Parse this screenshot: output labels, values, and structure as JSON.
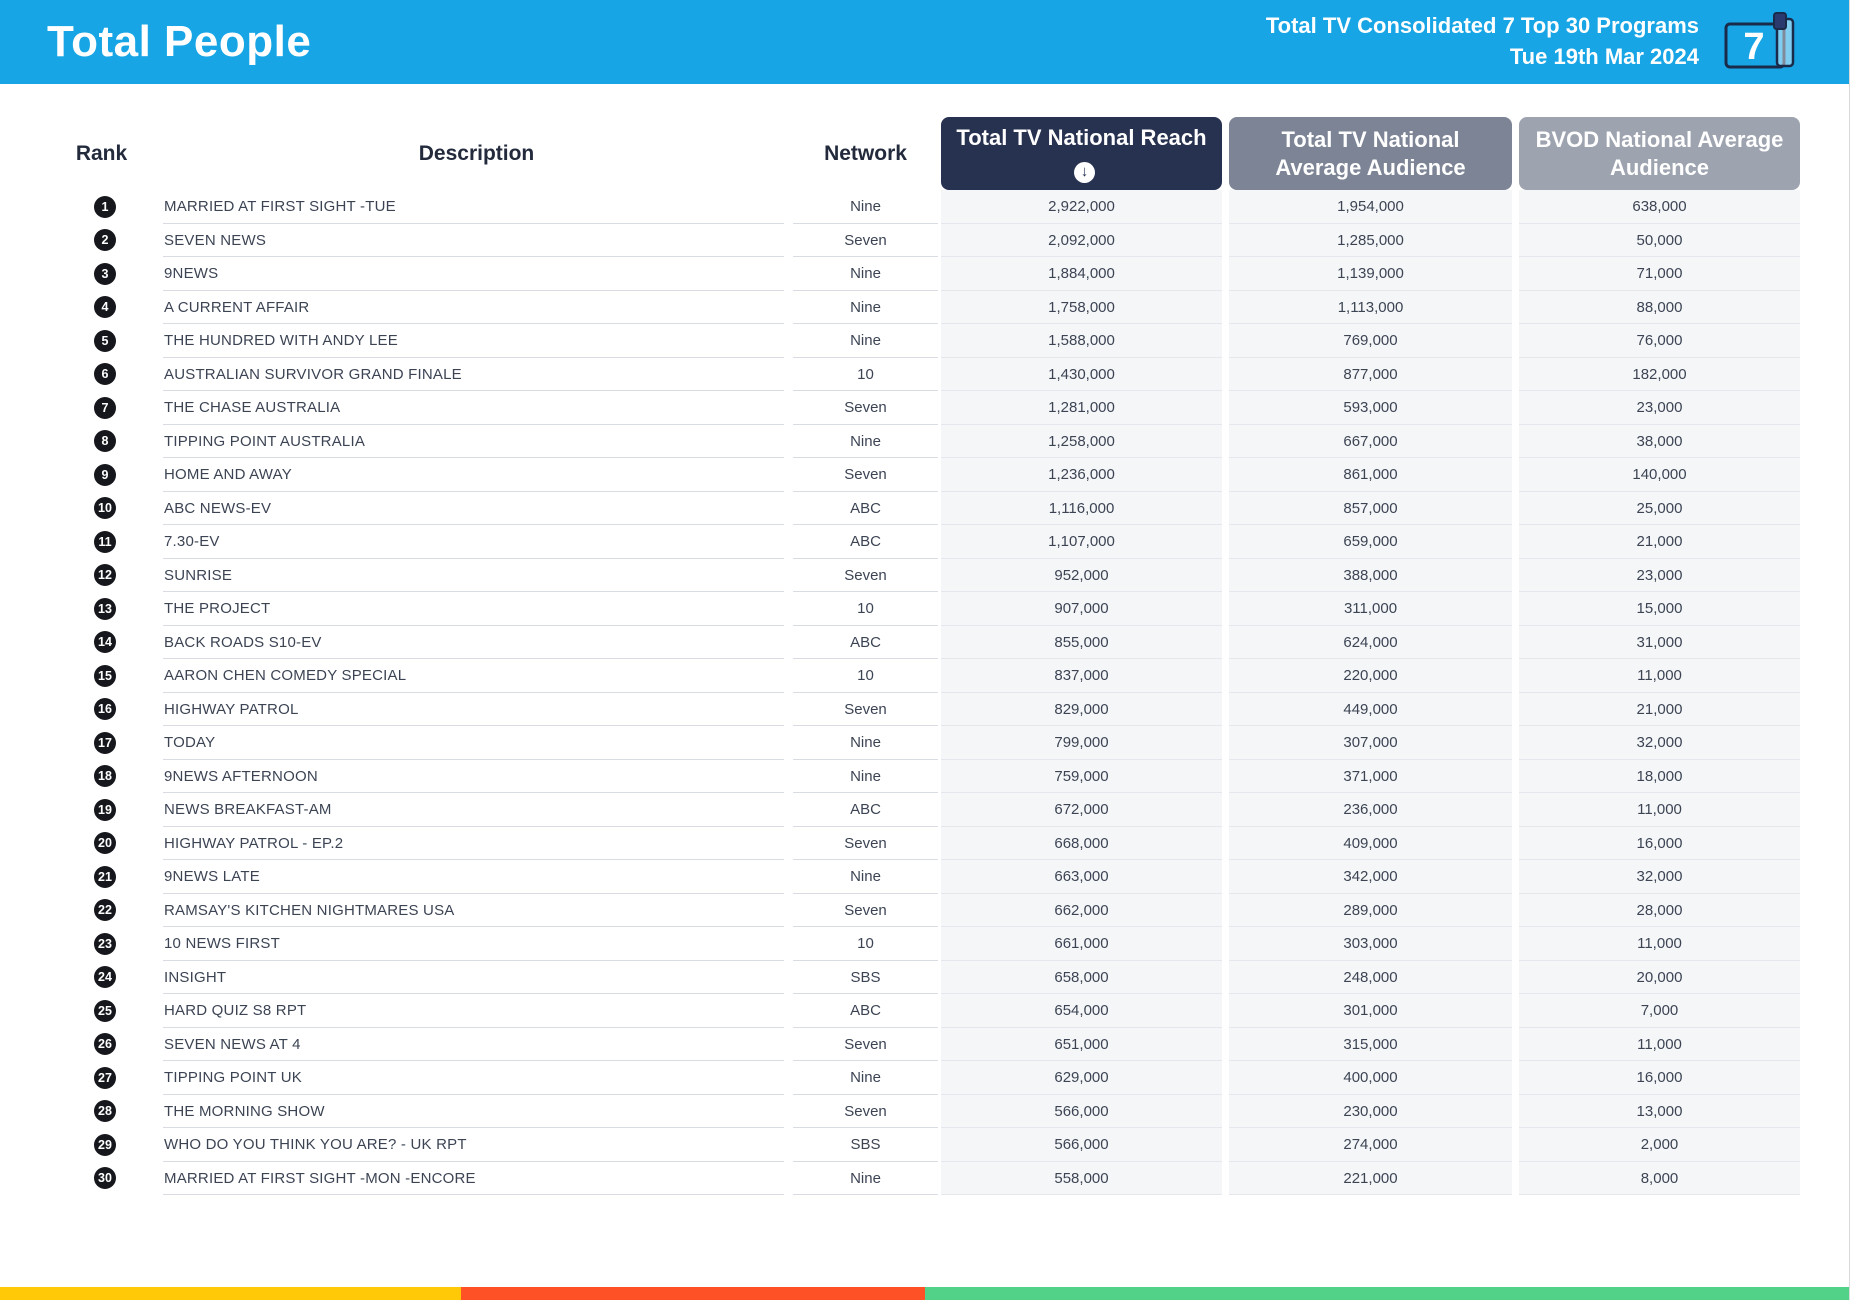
{
  "header": {
    "title": "Total People",
    "subtitle_line1": "Total TV Consolidated 7 Top 30 Programs",
    "subtitle_line2": "Tue 19th Mar 2024",
    "logo_text": "7",
    "background_color": "#17A5E6"
  },
  "table": {
    "columns": [
      {
        "label": "Rank"
      },
      {
        "label": "Description"
      },
      {
        "label": "Network"
      },
      {
        "label": "Total TV National Reach",
        "sorted": "descending",
        "header_color": "#273150"
      },
      {
        "label": "Total TV National Average Audience",
        "header_color": "#7C8495"
      },
      {
        "label": "BVOD National Average Audience",
        "header_color": "#9DA3AF"
      }
    ],
    "rows": [
      {
        "rank": "1",
        "description": "MARRIED AT FIRST SIGHT -TUE",
        "network": "Nine",
        "reach": "2,922,000",
        "avg": "1,954,000",
        "bvod": "638,000"
      },
      {
        "rank": "2",
        "description": "SEVEN NEWS",
        "network": "Seven",
        "reach": "2,092,000",
        "avg": "1,285,000",
        "bvod": "50,000"
      },
      {
        "rank": "3",
        "description": "9NEWS",
        "network": "Nine",
        "reach": "1,884,000",
        "avg": "1,139,000",
        "bvod": "71,000"
      },
      {
        "rank": "4",
        "description": "A CURRENT AFFAIR",
        "network": "Nine",
        "reach": "1,758,000",
        "avg": "1,113,000",
        "bvod": "88,000"
      },
      {
        "rank": "5",
        "description": "THE HUNDRED WITH ANDY LEE",
        "network": "Nine",
        "reach": "1,588,000",
        "avg": "769,000",
        "bvod": "76,000"
      },
      {
        "rank": "6",
        "description": "AUSTRALIAN SURVIVOR GRAND FINALE",
        "network": "10",
        "reach": "1,430,000",
        "avg": "877,000",
        "bvod": "182,000"
      },
      {
        "rank": "7",
        "description": "THE CHASE AUSTRALIA",
        "network": "Seven",
        "reach": "1,281,000",
        "avg": "593,000",
        "bvod": "23,000"
      },
      {
        "rank": "8",
        "description": "TIPPING POINT AUSTRALIA",
        "network": "Nine",
        "reach": "1,258,000",
        "avg": "667,000",
        "bvod": "38,000"
      },
      {
        "rank": "9",
        "description": "HOME AND AWAY",
        "network": "Seven",
        "reach": "1,236,000",
        "avg": "861,000",
        "bvod": "140,000"
      },
      {
        "rank": "10",
        "description": "ABC NEWS-EV",
        "network": "ABC",
        "reach": "1,116,000",
        "avg": "857,000",
        "bvod": "25,000"
      },
      {
        "rank": "11",
        "description": "7.30-EV",
        "network": "ABC",
        "reach": "1,107,000",
        "avg": "659,000",
        "bvod": "21,000"
      },
      {
        "rank": "12",
        "description": "SUNRISE",
        "network": "Seven",
        "reach": "952,000",
        "avg": "388,000",
        "bvod": "23,000"
      },
      {
        "rank": "13",
        "description": "THE PROJECT",
        "network": "10",
        "reach": "907,000",
        "avg": "311,000",
        "bvod": "15,000"
      },
      {
        "rank": "14",
        "description": "BACK ROADS S10-EV",
        "network": "ABC",
        "reach": "855,000",
        "avg": "624,000",
        "bvod": "31,000"
      },
      {
        "rank": "15",
        "description": "AARON CHEN COMEDY SPECIAL",
        "network": "10",
        "reach": "837,000",
        "avg": "220,000",
        "bvod": "11,000"
      },
      {
        "rank": "16",
        "description": "HIGHWAY PATROL",
        "network": "Seven",
        "reach": "829,000",
        "avg": "449,000",
        "bvod": "21,000"
      },
      {
        "rank": "17",
        "description": "TODAY",
        "network": "Nine",
        "reach": "799,000",
        "avg": "307,000",
        "bvod": "32,000"
      },
      {
        "rank": "18",
        "description": "9NEWS AFTERNOON",
        "network": "Nine",
        "reach": "759,000",
        "avg": "371,000",
        "bvod": "18,000"
      },
      {
        "rank": "19",
        "description": "NEWS BREAKFAST-AM",
        "network": "ABC",
        "reach": "672,000",
        "avg": "236,000",
        "bvod": "11,000"
      },
      {
        "rank": "20",
        "description": "HIGHWAY PATROL - EP.2",
        "network": "Seven",
        "reach": "668,000",
        "avg": "409,000",
        "bvod": "16,000"
      },
      {
        "rank": "21",
        "description": "9NEWS LATE",
        "network": "Nine",
        "reach": "663,000",
        "avg": "342,000",
        "bvod": "32,000"
      },
      {
        "rank": "22",
        "description": "RAMSAY'S KITCHEN NIGHTMARES USA",
        "network": "Seven",
        "reach": "662,000",
        "avg": "289,000",
        "bvod": "28,000"
      },
      {
        "rank": "23",
        "description": "10 NEWS FIRST",
        "network": "10",
        "reach": "661,000",
        "avg": "303,000",
        "bvod": "11,000"
      },
      {
        "rank": "24",
        "description": "INSIGHT",
        "network": "SBS",
        "reach": "658,000",
        "avg": "248,000",
        "bvod": "20,000"
      },
      {
        "rank": "25",
        "description": "HARD QUIZ S8 RPT",
        "network": "ABC",
        "reach": "654,000",
        "avg": "301,000",
        "bvod": "7,000"
      },
      {
        "rank": "26",
        "description": "SEVEN NEWS AT 4",
        "network": "Seven",
        "reach": "651,000",
        "avg": "315,000",
        "bvod": "11,000"
      },
      {
        "rank": "27",
        "description": "TIPPING POINT UK",
        "network": "Nine",
        "reach": "629,000",
        "avg": "400,000",
        "bvod": "16,000"
      },
      {
        "rank": "28",
        "description": "THE MORNING SHOW",
        "network": "Seven",
        "reach": "566,000",
        "avg": "230,000",
        "bvod": "13,000"
      },
      {
        "rank": "29",
        "description": "WHO DO YOU THINK YOU ARE? - UK RPT",
        "network": "SBS",
        "reach": "566,000",
        "avg": "274,000",
        "bvod": "2,000"
      },
      {
        "rank": "30",
        "description": "MARRIED AT FIRST SIGHT -MON -ENCORE",
        "network": "Nine",
        "reach": "558,000",
        "avg": "221,000",
        "bvod": "8,000"
      }
    ]
  },
  "icons": {
    "sort_descending": "↓",
    "sort_icon_name": "sort-descending-icon"
  },
  "footer": {
    "segment_colors": [
      "#FFC907",
      "#FF5126",
      "#52D189"
    ]
  }
}
